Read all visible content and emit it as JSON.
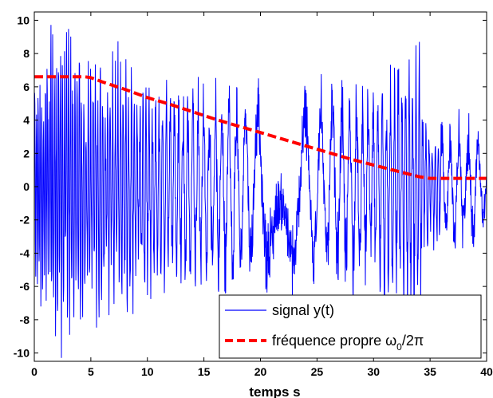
{
  "chart_data": {
    "type": "line",
    "xlabel": "temps s",
    "ylabel": "",
    "title": "",
    "xlim": [
      0,
      40
    ],
    "ylim": [
      -10.5,
      10.5
    ],
    "xticks": [
      0,
      5,
      10,
      15,
      20,
      25,
      30,
      35,
      40
    ],
    "yticks": [
      -10,
      -8,
      -6,
      -4,
      -2,
      0,
      2,
      4,
      6,
      8,
      10
    ],
    "grid": false,
    "legend_position": "bottom-right",
    "series": [
      {
        "name": "signal y(t)",
        "style": "solid",
        "color": "#0000ff",
        "description_points_approx": {
          "x": [
            0,
            2,
            4,
            6,
            8,
            10,
            12,
            14,
            16,
            18,
            20,
            22,
            24,
            26,
            28,
            30,
            32,
            34,
            35,
            36,
            37,
            38,
            39,
            40
          ],
          "y_envelope": [
            6,
            10,
            8,
            7.5,
            7,
            6.5,
            6.5,
            6.2,
            6,
            6,
            6,
            6,
            6,
            6,
            6,
            6,
            7.5,
            7.5,
            3,
            4,
            4,
            4,
            4,
            2
          ]
        }
      },
      {
        "name": "fréquence propre ω0/2π",
        "legend_main": "fréquence propre ω",
        "legend_sub": "0",
        "legend_tail": "/2π",
        "style": "dashed",
        "color": "#ff0000",
        "x": [
          0,
          4.5,
          5,
          6,
          8,
          10,
          12,
          14,
          16,
          18,
          20,
          22,
          24,
          26,
          28,
          30,
          32,
          34,
          35,
          36,
          38,
          40
        ],
        "y": [
          6.6,
          6.6,
          6.55,
          6.3,
          5.85,
          5.35,
          4.95,
          4.5,
          4.05,
          3.65,
          3.25,
          2.85,
          2.45,
          2.05,
          1.65,
          1.3,
          0.95,
          0.6,
          0.5,
          0.5,
          0.5,
          0.5
        ]
      }
    ]
  }
}
